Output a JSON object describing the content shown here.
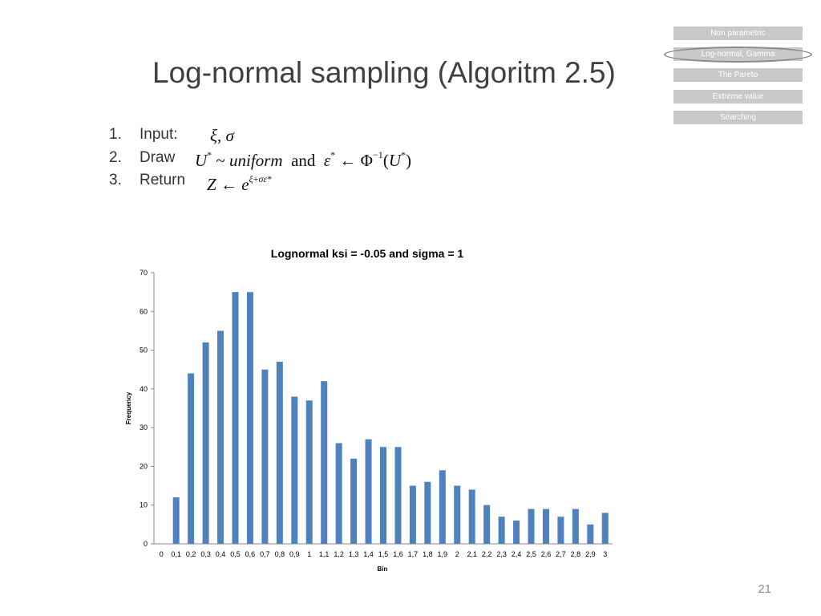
{
  "slide": {
    "title": "Log-normal sampling (Algoritm 2.5)",
    "page_number": "21"
  },
  "nav": {
    "items": [
      {
        "label": "Non parametric"
      },
      {
        "label": "Log-normal, Gamma"
      },
      {
        "label": "The Pareto"
      },
      {
        "label": "Extreme value"
      },
      {
        "label": "Searching"
      }
    ],
    "active_index": 1
  },
  "steps": [
    {
      "num": "1.",
      "label": "Input:"
    },
    {
      "num": "2.",
      "label": "Draw"
    },
    {
      "num": "3.",
      "label": "Return"
    }
  ],
  "formulas": {
    "input": "ξ, σ",
    "draw_left": "U* ~ uniform",
    "draw_and": "and",
    "draw_right": "ε* ← Φ⁻¹(U*)",
    "return": "Z ← e^(ξ+σε*)"
  },
  "chart_data": {
    "type": "bar",
    "title": "Lognormal ksi = -0.05 and sigma = 1",
    "xlabel": "Bin",
    "ylabel": "Frequency",
    "ylim": [
      0,
      70
    ],
    "yticks": [
      0,
      10,
      20,
      30,
      40,
      50,
      60,
      70
    ],
    "grid": false,
    "legend": "none",
    "bar_color": "#4f81bd",
    "categories": [
      "0",
      "0,1",
      "0,2",
      "0,3",
      "0,4",
      "0,5",
      "0,6",
      "0,7",
      "0,8",
      "0,9",
      "1",
      "1,1",
      "1,2",
      "1,3",
      "1,4",
      "1,5",
      "1,6",
      "1,7",
      "1,8",
      "1,9",
      "2",
      "2,1",
      "2,2",
      "2,3",
      "2,4",
      "2,5",
      "2,6",
      "2,7",
      "2,8",
      "2,9",
      "3"
    ],
    "values": [
      0,
      12,
      44,
      52,
      55,
      65,
      65,
      45,
      47,
      38,
      37,
      42,
      26,
      22,
      27,
      25,
      25,
      15,
      16,
      19,
      15,
      14,
      10,
      7,
      6,
      9,
      9,
      7,
      9,
      5,
      8
    ]
  }
}
